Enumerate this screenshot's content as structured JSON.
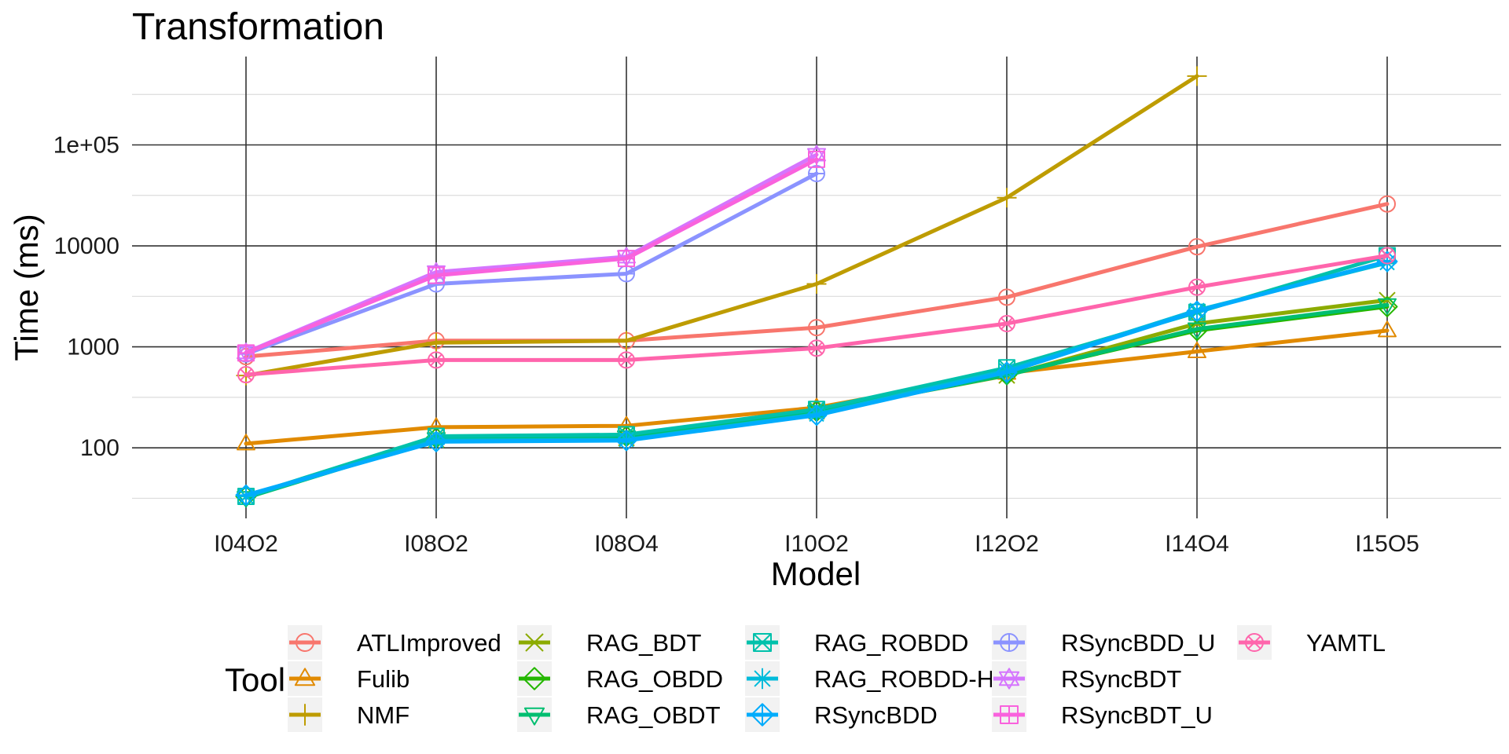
{
  "chart_data": {
    "type": "line",
    "title": "Transformation",
    "xlabel": "Model",
    "ylabel": "Time (ms)",
    "yscale": "log10",
    "ylim": [
      20,
      750000
    ],
    "ytick_values": [
      100,
      1000,
      10000,
      100000
    ],
    "ytick_labels": [
      "100",
      "1000",
      "10000",
      "1e+05"
    ],
    "categories": [
      "I04O2",
      "I08O2",
      "I08O4",
      "I10O2",
      "I12O2",
      "I14O4",
      "I15O5"
    ],
    "grid": true,
    "legend": {
      "title": "Tool",
      "position": "bottom"
    },
    "series": [
      {
        "name": "ATLImproved",
        "color": "#F8766D",
        "marker": "circle",
        "values": [
          800,
          1150,
          1150,
          1550,
          3100,
          9800,
          26000
        ]
      },
      {
        "name": "Fulib",
        "color": "#E18A00",
        "marker": "triangle",
        "values": [
          110,
          160,
          165,
          250,
          550,
          900,
          1450
        ]
      },
      {
        "name": "NMF",
        "color": "#BE9C00",
        "marker": "plus",
        "values": [
          520,
          1100,
          1150,
          4200,
          30000,
          480000,
          null
        ]
      },
      {
        "name": "RAG_BDT",
        "color": "#8CAB00",
        "marker": "cross",
        "values": [
          33,
          120,
          125,
          230,
          520,
          1700,
          2900
        ]
      },
      {
        "name": "RAG_OBDD",
        "color": "#24B700",
        "marker": "diamond",
        "values": [
          33,
          125,
          130,
          230,
          530,
          1450,
          2500
        ]
      },
      {
        "name": "RAG_OBDT",
        "color": "#00BE70",
        "marker": "triangle-down",
        "values": [
          32,
          122,
          128,
          228,
          525,
          1500,
          2600
        ]
      },
      {
        "name": "RAG_ROBDD",
        "color": "#00C1AB",
        "marker": "square-cross",
        "values": [
          33,
          130,
          135,
          240,
          620,
          2200,
          8000
        ]
      },
      {
        "name": "RAG_ROBDD-H",
        "color": "#00BBDA",
        "marker": "star",
        "values": [
          33,
          118,
          120,
          215,
          580,
          2300,
          6800
        ]
      },
      {
        "name": "RSyncBDD",
        "color": "#00ACFC",
        "marker": "diamond-plus",
        "values": [
          34,
          115,
          118,
          210,
          560,
          2250,
          7000
        ]
      },
      {
        "name": "RSyncBDD_U",
        "color": "#8B93FF",
        "marker": "circle-plus",
        "values": [
          850,
          4200,
          5300,
          52000,
          null,
          null,
          null
        ]
      },
      {
        "name": "RSyncBDT",
        "color": "#D575FE",
        "marker": "star-of-david",
        "values": [
          880,
          5500,
          7800,
          80000,
          null,
          null,
          null
        ]
      },
      {
        "name": "RSyncBDT_U",
        "color": "#F962DD",
        "marker": "square-plus",
        "values": [
          870,
          5100,
          7500,
          72000,
          null,
          null,
          null
        ]
      },
      {
        "name": "YAMTL",
        "color": "#FF65AC",
        "marker": "circle-cross",
        "values": [
          530,
          740,
          740,
          970,
          1700,
          3900,
          8000
        ]
      }
    ]
  }
}
